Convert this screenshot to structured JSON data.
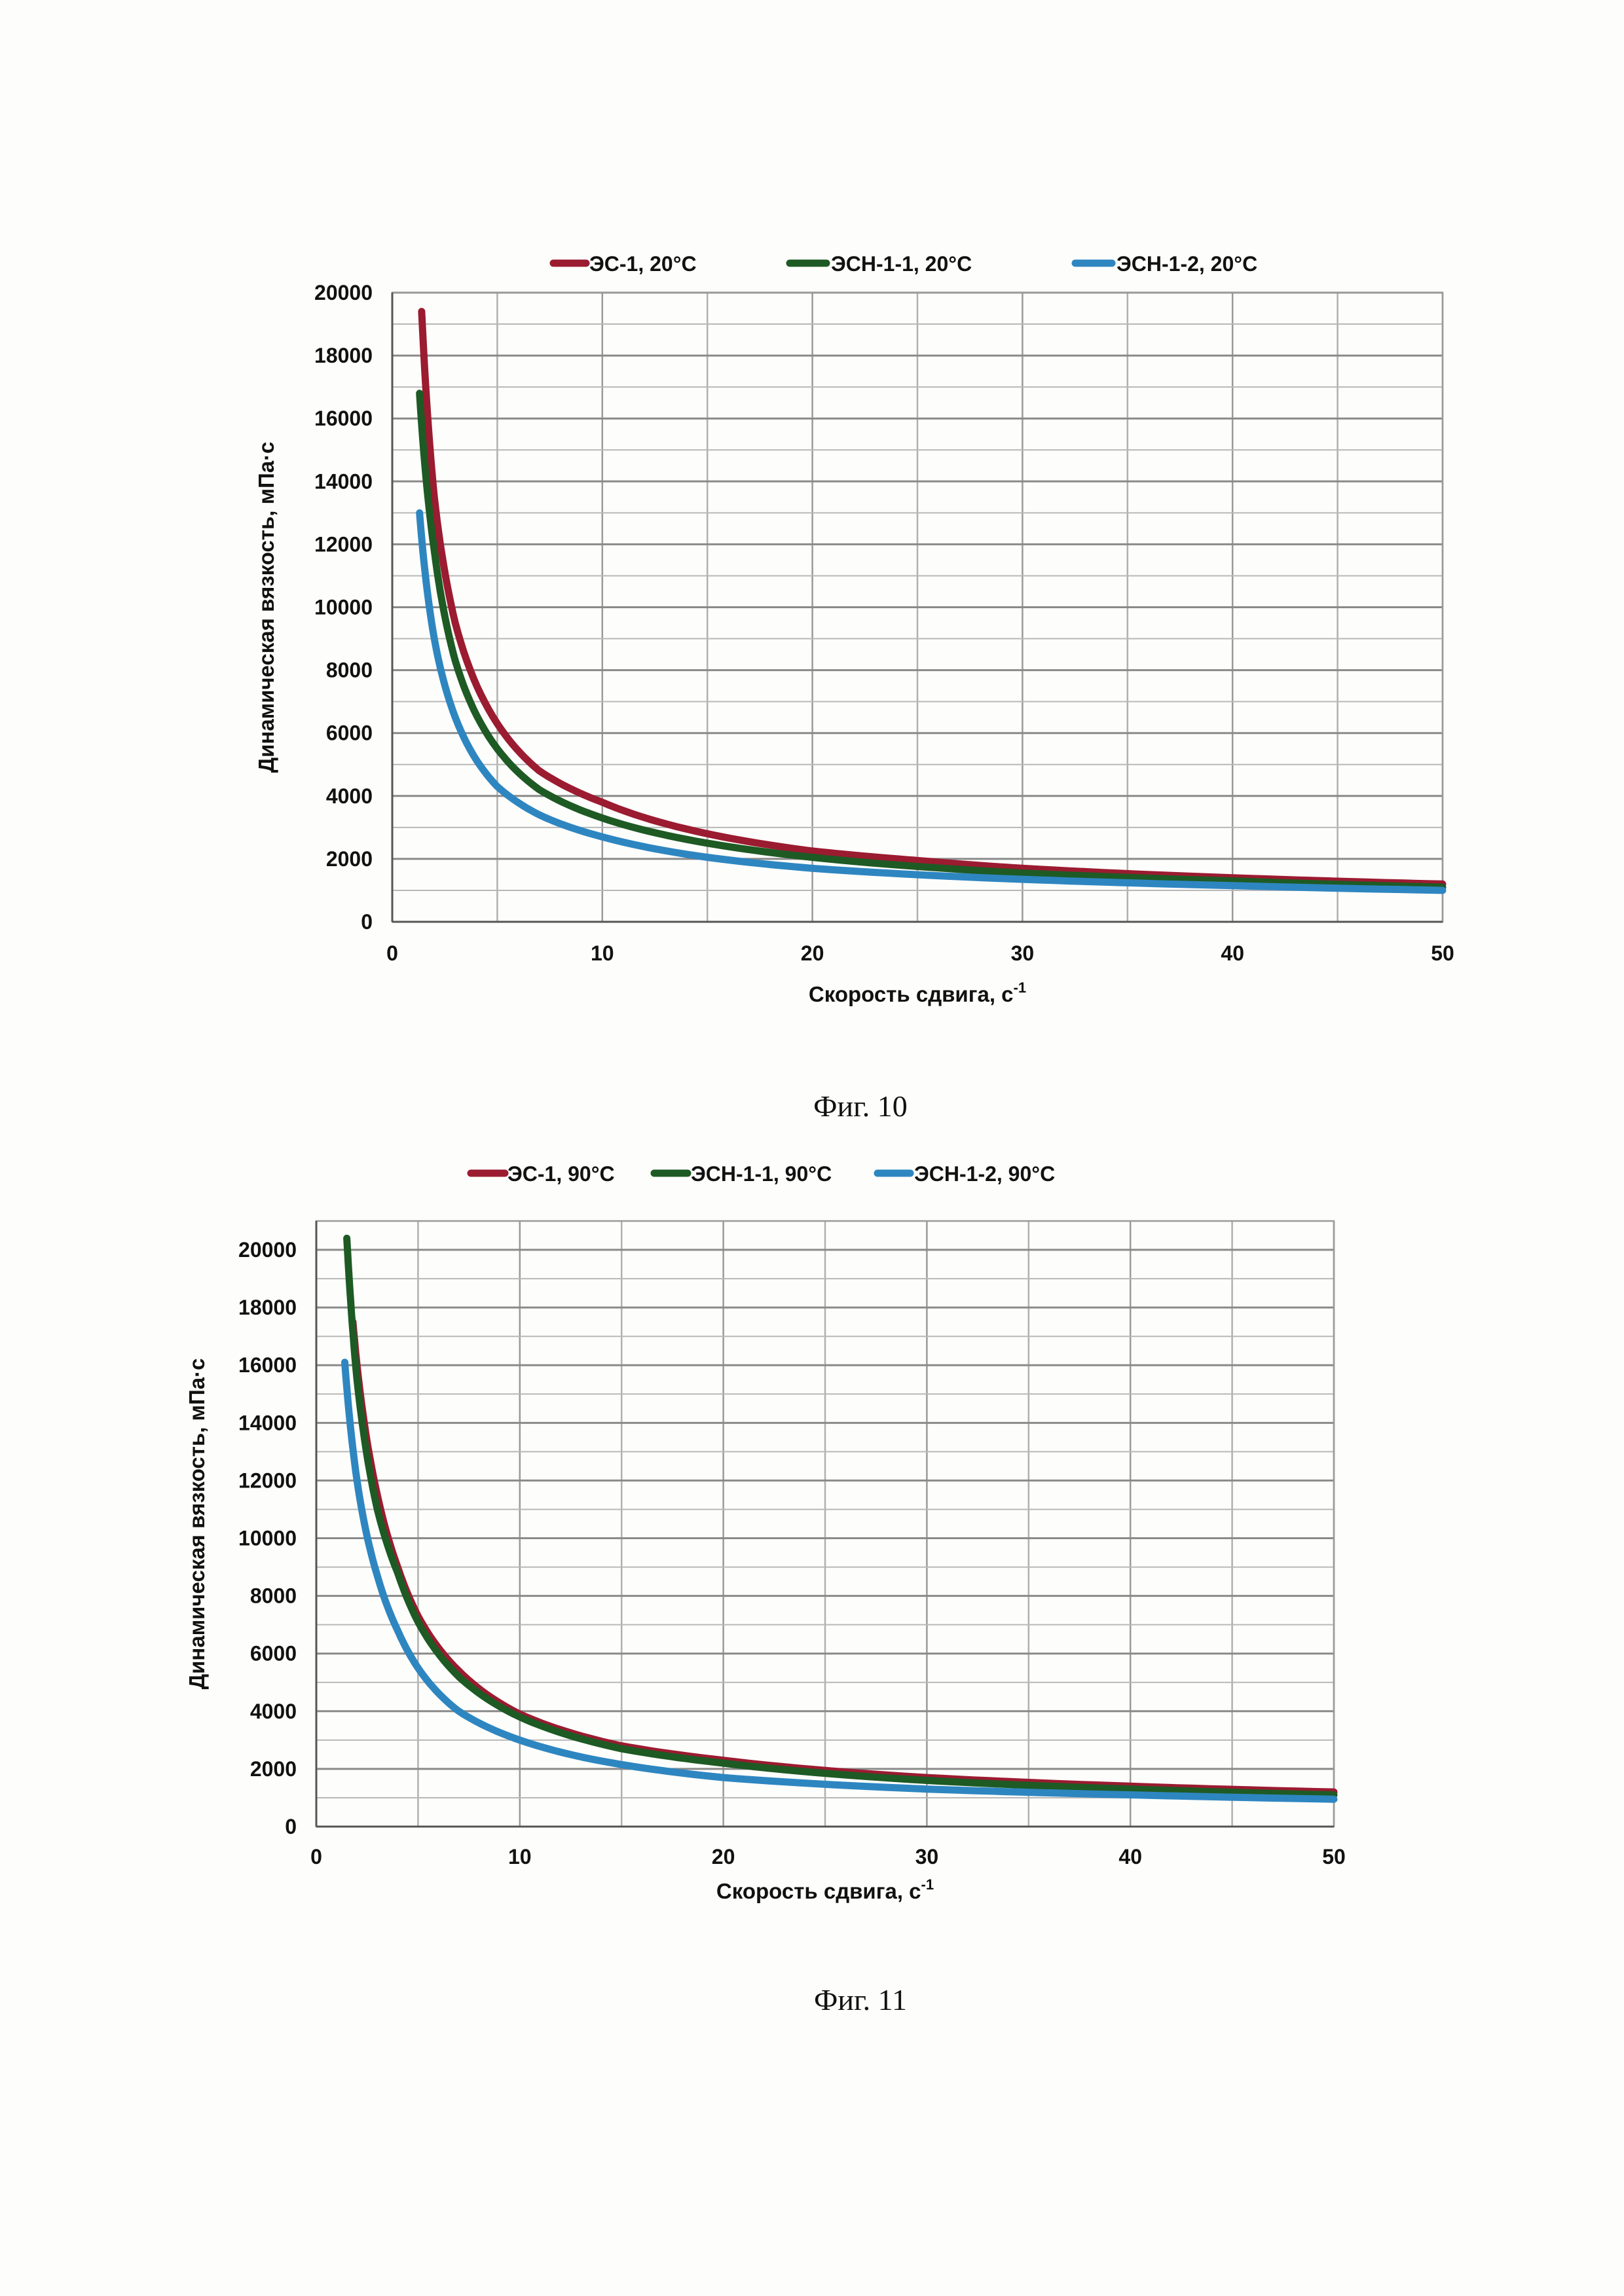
{
  "chart_data": [
    {
      "type": "line",
      "title": "",
      "caption": "Фиг. 10",
      "xlabel": "Скорость сдвига, с",
      "xlabel_sup": "-1",
      "ylabel": "Динамическая вязкость, мПа·с",
      "xlim": [
        0,
        50
      ],
      "ylim": [
        0,
        20000
      ],
      "xticks": [
        0,
        10,
        20,
        30,
        40,
        50
      ],
      "yticks": [
        0,
        2000,
        4000,
        6000,
        8000,
        10000,
        12000,
        14000,
        16000,
        18000,
        20000
      ],
      "grid": true,
      "legend_position": "top",
      "series": [
        {
          "name": "ЭС-1, 20°C",
          "color": "#9b1b30",
          "points": [
            [
              1.4,
              19400
            ],
            [
              2,
              13500
            ],
            [
              3,
              9500
            ],
            [
              5,
              6300
            ],
            [
              7,
              4800
            ],
            [
              10,
              3800
            ],
            [
              15,
              2800
            ],
            [
              20,
              2250
            ],
            [
              25,
              1950
            ],
            [
              30,
              1700
            ],
            [
              40,
              1400
            ],
            [
              50,
              1200
            ]
          ]
        },
        {
          "name": "ЭСН-1-1, 20°C",
          "color": "#1e5a24",
          "points": [
            [
              1.3,
              16800
            ],
            [
              2,
              11800
            ],
            [
              3,
              8300
            ],
            [
              5,
              5500
            ],
            [
              7,
              4200
            ],
            [
              10,
              3300
            ],
            [
              15,
              2500
            ],
            [
              20,
              2050
            ],
            [
              30,
              1550
            ],
            [
              40,
              1300
            ],
            [
              50,
              1100
            ]
          ]
        },
        {
          "name": "ЭСН-1-2, 20°C",
          "color": "#2e86c1",
          "points": [
            [
              1.3,
              13000
            ],
            [
              2,
              9000
            ],
            [
              3,
              6500
            ],
            [
              5,
              4300
            ],
            [
              7,
              3400
            ],
            [
              10,
              2700
            ],
            [
              15,
              2050
            ],
            [
              20,
              1700
            ],
            [
              30,
              1350
            ],
            [
              40,
              1150
            ],
            [
              50,
              1000
            ]
          ]
        }
      ]
    },
    {
      "type": "line",
      "title": "",
      "caption": "Фиг. 11",
      "xlabel": "Скорость сдвига, с",
      "xlabel_sup": "-1",
      "ylabel": "Динамическая вязкость, мПа·с",
      "xlim": [
        0,
        50
      ],
      "ylim": [
        0,
        21000
      ],
      "xticks": [
        0,
        10,
        20,
        30,
        40,
        50
      ],
      "yticks": [
        0,
        2000,
        4000,
        6000,
        8000,
        10000,
        12000,
        14000,
        16000,
        18000,
        20000
      ],
      "grid": true,
      "legend_position": "top",
      "series": [
        {
          "name": "ЭС-1, 90°C",
          "color": "#9b1b30",
          "points": [
            [
              1.8,
              17500
            ],
            [
              2,
              16000
            ],
            [
              3,
              11500
            ],
            [
              4,
              9000
            ],
            [
              5,
              7300
            ],
            [
              7,
              5400
            ],
            [
              10,
              3900
            ],
            [
              15,
              2800
            ],
            [
              20,
              2300
            ],
            [
              30,
              1700
            ],
            [
              40,
              1400
            ],
            [
              50,
              1200
            ]
          ]
        },
        {
          "name": "ЭСН-1-1, 90°C",
          "color": "#1e5a24",
          "points": [
            [
              1.5,
              20400
            ],
            [
              2,
              15500
            ],
            [
              3,
              11000
            ],
            [
              4,
              8800
            ],
            [
              5,
              7100
            ],
            [
              7,
              5200
            ],
            [
              10,
              3800
            ],
            [
              15,
              2700
            ],
            [
              20,
              2200
            ],
            [
              30,
              1600
            ],
            [
              40,
              1300
            ],
            [
              50,
              1100
            ]
          ]
        },
        {
          "name": "ЭСН-1-2, 90°C",
          "color": "#2e86c1",
          "points": [
            [
              1.4,
              16100
            ],
            [
              2,
              12000
            ],
            [
              3,
              8700
            ],
            [
              4,
              6800
            ],
            [
              5,
              5500
            ],
            [
              7,
              4000
            ],
            [
              10,
              3000
            ],
            [
              15,
              2150
            ],
            [
              20,
              1700
            ],
            [
              30,
              1300
            ],
            [
              40,
              1100
            ],
            [
              50,
              950
            ]
          ]
        }
      ]
    }
  ]
}
